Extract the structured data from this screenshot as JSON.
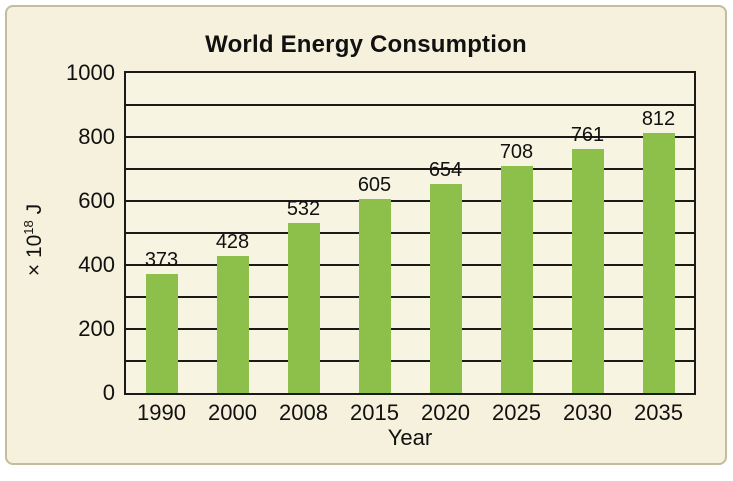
{
  "chart_data": {
    "type": "bar",
    "title": "World Energy Consumption",
    "categories": [
      "1990",
      "2000",
      "2008",
      "2015",
      "2020",
      "2025",
      "2030",
      "2035"
    ],
    "values": [
      373,
      428,
      532,
      605,
      654,
      708,
      761,
      812
    ],
    "data_labels": [
      "373",
      "428",
      "532",
      "605",
      "654",
      "708",
      "761",
      "812"
    ],
    "xlabel": "Year",
    "ylabel": {
      "base": "× 10",
      "exponent": "18",
      "unit": " J"
    },
    "ylim": [
      0,
      1000
    ],
    "ytick_labels": [
      "0",
      "200",
      "400",
      "600",
      "800",
      "1000"
    ],
    "ytick_values": [
      0,
      200,
      400,
      600,
      800,
      1000
    ],
    "gridline_step": 100,
    "grid": "horizontal, behind bars",
    "legend": "none"
  },
  "colors": {
    "bar_fill": "#8CC04A",
    "figure_background": "#F5F1DC",
    "plot_background": "#F7F4E1",
    "figure_border": "#C6BB9C",
    "axis_and_grid": "#1A1A1A",
    "text": "#111111"
  }
}
